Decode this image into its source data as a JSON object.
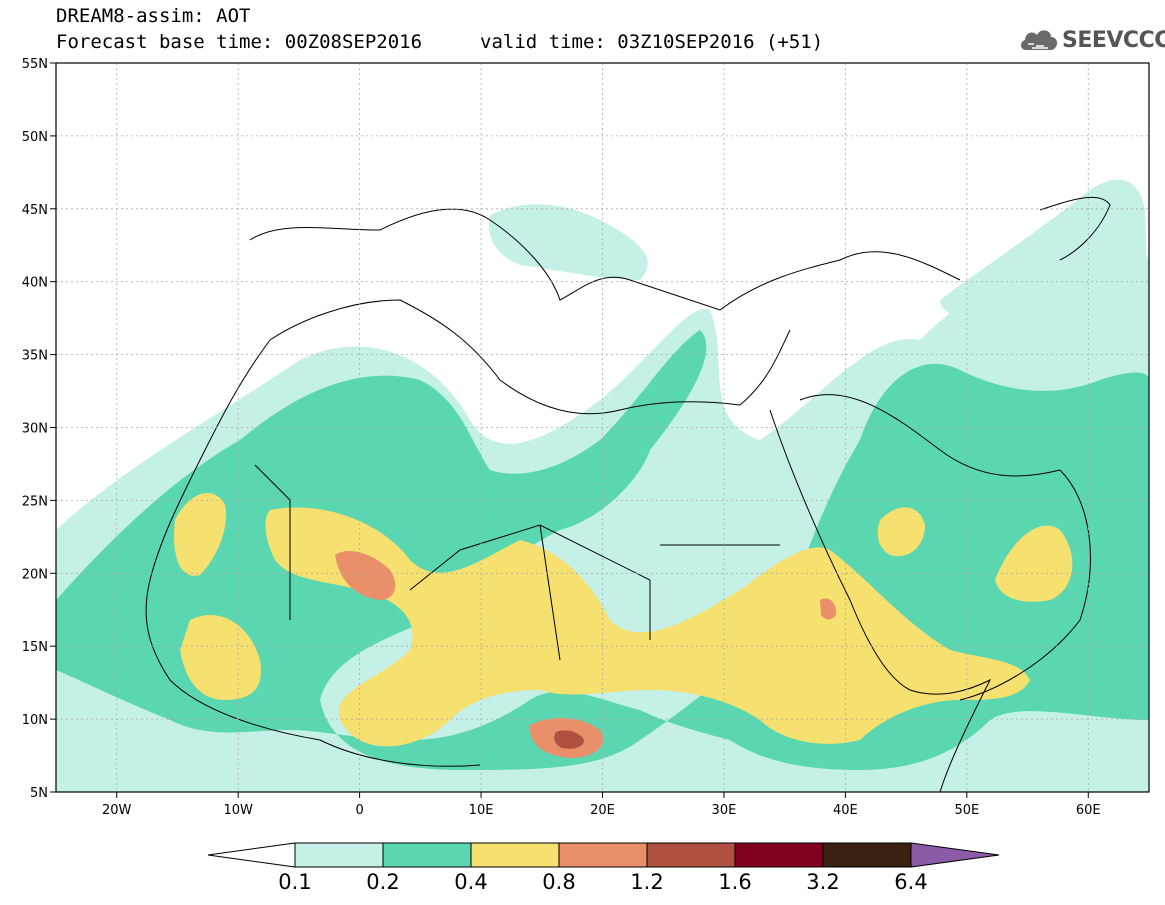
{
  "title": {
    "line1": "DREAM8-assim: AOT",
    "line2": "Forecast base time: 00Z08SEP2016",
    "valid": "valid time: 03Z10SEP2016 (+51)"
  },
  "logo": {
    "text": "SEEVCCC",
    "icon": "cloud-icon"
  },
  "map_data": {
    "variable": "AOT",
    "lon_range": [
      -25,
      65
    ],
    "lat_range": [
      5,
      55
    ],
    "lon_ticks": [
      "20W",
      "10W",
      "0",
      "10E",
      "20E",
      "30E",
      "40E",
      "50E",
      "60E"
    ],
    "lat_ticks": [
      "55N",
      "50N",
      "45N",
      "40N",
      "35N",
      "30N",
      "25N",
      "20N",
      "15N",
      "10N",
      "5N"
    ]
  },
  "colorbar": {
    "labels": [
      "0.1",
      "0.2",
      "0.4",
      "0.8",
      "1.2",
      "1.6",
      "3.2",
      "6.4"
    ],
    "colors": [
      "#c5f0e8",
      "#5ad7b0",
      "#f5e070",
      "#e9906a",
      "#b05040",
      "#800020",
      "#3a2010",
      "#8a5ca8"
    ]
  }
}
